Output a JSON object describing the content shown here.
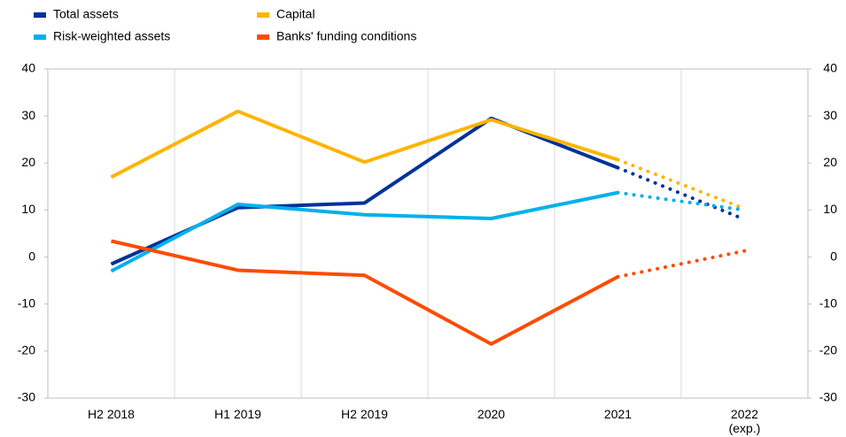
{
  "chart_data": {
    "type": "line",
    "categories": [
      "H2 2018",
      "H1 2019",
      "H2 2019",
      "2020",
      "2021",
      "2022 (exp.)"
    ],
    "projected_from": 4,
    "series": [
      {
        "name": "Total assets",
        "color": "#003299",
        "values": [
          -1.5,
          10.5,
          11.5,
          29.5,
          19,
          8
        ]
      },
      {
        "name": "Capital",
        "color": "#ffb400",
        "values": [
          17,
          31,
          20.2,
          29.2,
          20.7,
          10.3
        ]
      },
      {
        "name": "Risk-weighted assets",
        "color": "#00b1ea",
        "values": [
          -3,
          11.2,
          9,
          8.2,
          13.7,
          10
        ]
      },
      {
        "name": "Banks' funding conditions",
        "color": "#ff4b00",
        "values": [
          3.4,
          -2.8,
          -3.9,
          -18.5,
          -4.2,
          1.3
        ]
      }
    ],
    "ylim": [
      -30,
      40
    ],
    "yticks": [
      -30,
      -20,
      -10,
      0,
      10,
      20,
      30,
      40
    ],
    "y2lim": [
      -30,
      40
    ],
    "y2ticks": [
      -30,
      -20,
      -10,
      0,
      10,
      20,
      30,
      40
    ],
    "grid": "vertical"
  }
}
